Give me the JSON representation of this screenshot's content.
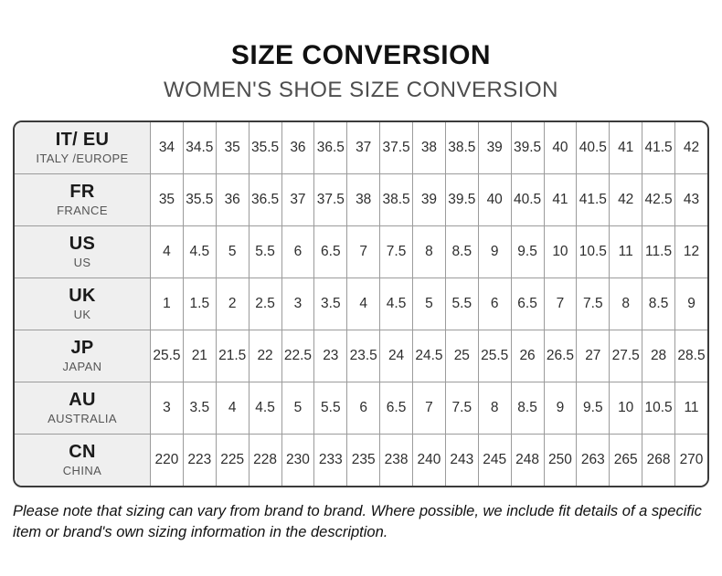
{
  "header": {
    "title": "SIZE CONVERSION",
    "subtitle": "WOMEN'S SHOE SIZE CONVERSION"
  },
  "table": {
    "rows": [
      {
        "code": "IT/ EU",
        "region": "ITALY /EUROPE",
        "values": [
          "34",
          "34.5",
          "35",
          "35.5",
          "36",
          "36.5",
          "37",
          "37.5",
          "38",
          "38.5",
          "39",
          "39.5",
          "40",
          "40.5",
          "41",
          "41.5",
          "42"
        ]
      },
      {
        "code": "FR",
        "region": "FRANCE",
        "values": [
          "35",
          "35.5",
          "36",
          "36.5",
          "37",
          "37.5",
          "38",
          "38.5",
          "39",
          "39.5",
          "40",
          "40.5",
          "41",
          "41.5",
          "42",
          "42.5",
          "43"
        ]
      },
      {
        "code": "US",
        "region": "US",
        "values": [
          "4",
          "4.5",
          "5",
          "5.5",
          "6",
          "6.5",
          "7",
          "7.5",
          "8",
          "8.5",
          "9",
          "9.5",
          "10",
          "10.5",
          "11",
          "11.5",
          "12"
        ]
      },
      {
        "code": "UK",
        "region": "UK",
        "values": [
          "1",
          "1.5",
          "2",
          "2.5",
          "3",
          "3.5",
          "4",
          "4.5",
          "5",
          "5.5",
          "6",
          "6.5",
          "7",
          "7.5",
          "8",
          "8.5",
          "9"
        ]
      },
      {
        "code": "JP",
        "region": "JAPAN",
        "values": [
          "25.5",
          "21",
          "21.5",
          "22",
          "22.5",
          "23",
          "23.5",
          "24",
          "24.5",
          "25",
          "25.5",
          "26",
          "26.5",
          "27",
          "27.5",
          "28",
          "28.5"
        ]
      },
      {
        "code": "AU",
        "region": "AUSTRALIA",
        "values": [
          "3",
          "3.5",
          "4",
          "4.5",
          "5",
          "5.5",
          "6",
          "6.5",
          "7",
          "7.5",
          "8",
          "8.5",
          "9",
          "9.5",
          "10",
          "10.5",
          "11"
        ]
      },
      {
        "code": "CN",
        "region": "CHINA",
        "values": [
          "220",
          "223",
          "225",
          "228",
          "230",
          "233",
          "235",
          "238",
          "240",
          "243",
          "245",
          "248",
          "250",
          "263",
          "265",
          "268",
          "270"
        ]
      }
    ]
  },
  "note": {
    "text": "Please note that sizing can vary from brand to brand. Where possible, we include fit details of a specific item or brand's own sizing information in the description."
  },
  "colors": {
    "outer_border": "#3b3b3b",
    "grid_line": "#9b9b9b",
    "header_cell_bg": "#efefef",
    "title_text": "#111111",
    "subtitle_text": "#4d4d4d",
    "value_text": "#2e2e2e"
  }
}
